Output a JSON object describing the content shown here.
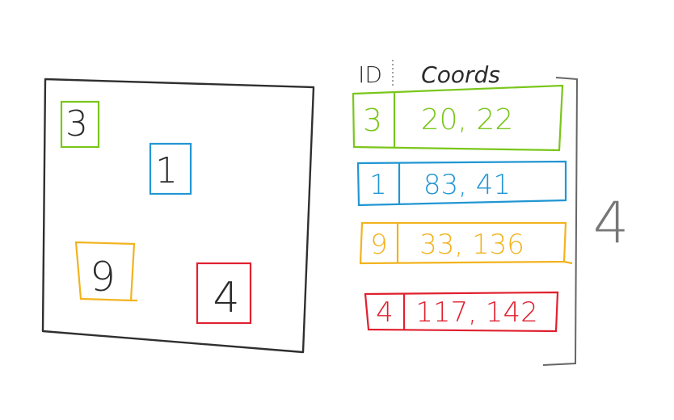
{
  "headers": {
    "id_label": "ID",
    "coords_label": "Coords"
  },
  "canvas_boxes": [
    {
      "id": "3",
      "color": "#7ac61b"
    },
    {
      "id": "1",
      "color": "#2196d3"
    },
    {
      "id": "9",
      "color": "#f2b31e"
    },
    {
      "id": "4",
      "color": "#e0202f"
    }
  ],
  "table_rows": [
    {
      "id": "3",
      "coords": "20, 22",
      "color": "#7ac61b"
    },
    {
      "id": "1",
      "coords": "83, 41",
      "color": "#2196d3"
    },
    {
      "id": "9",
      "coords": "33, 136",
      "color": "#f2b31e"
    },
    {
      "id": "4",
      "coords": "117, 142",
      "color": "#e0202f"
    }
  ],
  "total_count": "4",
  "colors": {
    "canvas_border": "#2f2f2f",
    "bracket": "#666666",
    "text_dark": "#2b2b2b"
  }
}
